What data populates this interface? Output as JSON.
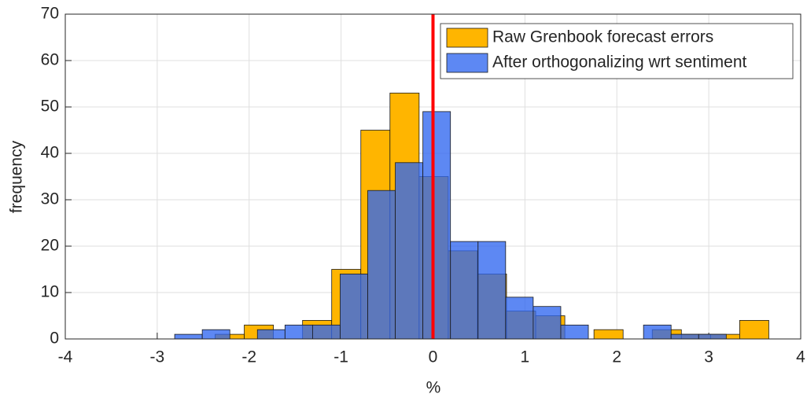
{
  "chart_data": {
    "type": "histogram",
    "xlabel": "%",
    "ylabel": "frequency",
    "xlim": [
      -4,
      4
    ],
    "ylim": [
      0,
      70
    ],
    "xticks": [
      -4,
      -3,
      -2,
      -1,
      0,
      1,
      2,
      3,
      4
    ],
    "yticks": [
      0,
      10,
      20,
      30,
      40,
      50,
      60,
      70
    ],
    "grid": true,
    "legend": "upper right",
    "vline": 0,
    "vline_color": "#ff0000",
    "series": [
      {
        "name": "Raw Grenbook forecast errors",
        "color": "#ffb500",
        "bins": [
          -2.37,
          -2.053,
          -1.736,
          -1.419,
          -1.102,
          -0.785,
          -0.468,
          -0.151,
          0.166,
          0.483,
          0.8,
          1.117,
          1.434,
          1.751,
          2.068,
          2.385,
          2.702,
          3.019,
          3.336,
          3.653
        ],
        "values": [
          1,
          3,
          0,
          4,
          15,
          45,
          53,
          35,
          19,
          14,
          6,
          5,
          0,
          2,
          0,
          2,
          1,
          1,
          4
        ]
      },
      {
        "name": "After orthogonalizing wrt sentiment",
        "color": "#2f66f0",
        "bins": [
          -2.81,
          -2.51,
          -2.21,
          -1.91,
          -1.61,
          -1.31,
          -1.01,
          -0.71,
          -0.41,
          -0.11,
          0.19,
          0.49,
          0.79,
          1.09,
          1.39,
          1.69,
          1.99,
          2.29,
          2.59,
          2.89,
          3.19
        ],
        "values": [
          1,
          2,
          0,
          2,
          3,
          3,
          14,
          32,
          38,
          49,
          21,
          21,
          9,
          7,
          3,
          0,
          0,
          3,
          1,
          1
        ]
      }
    ]
  }
}
